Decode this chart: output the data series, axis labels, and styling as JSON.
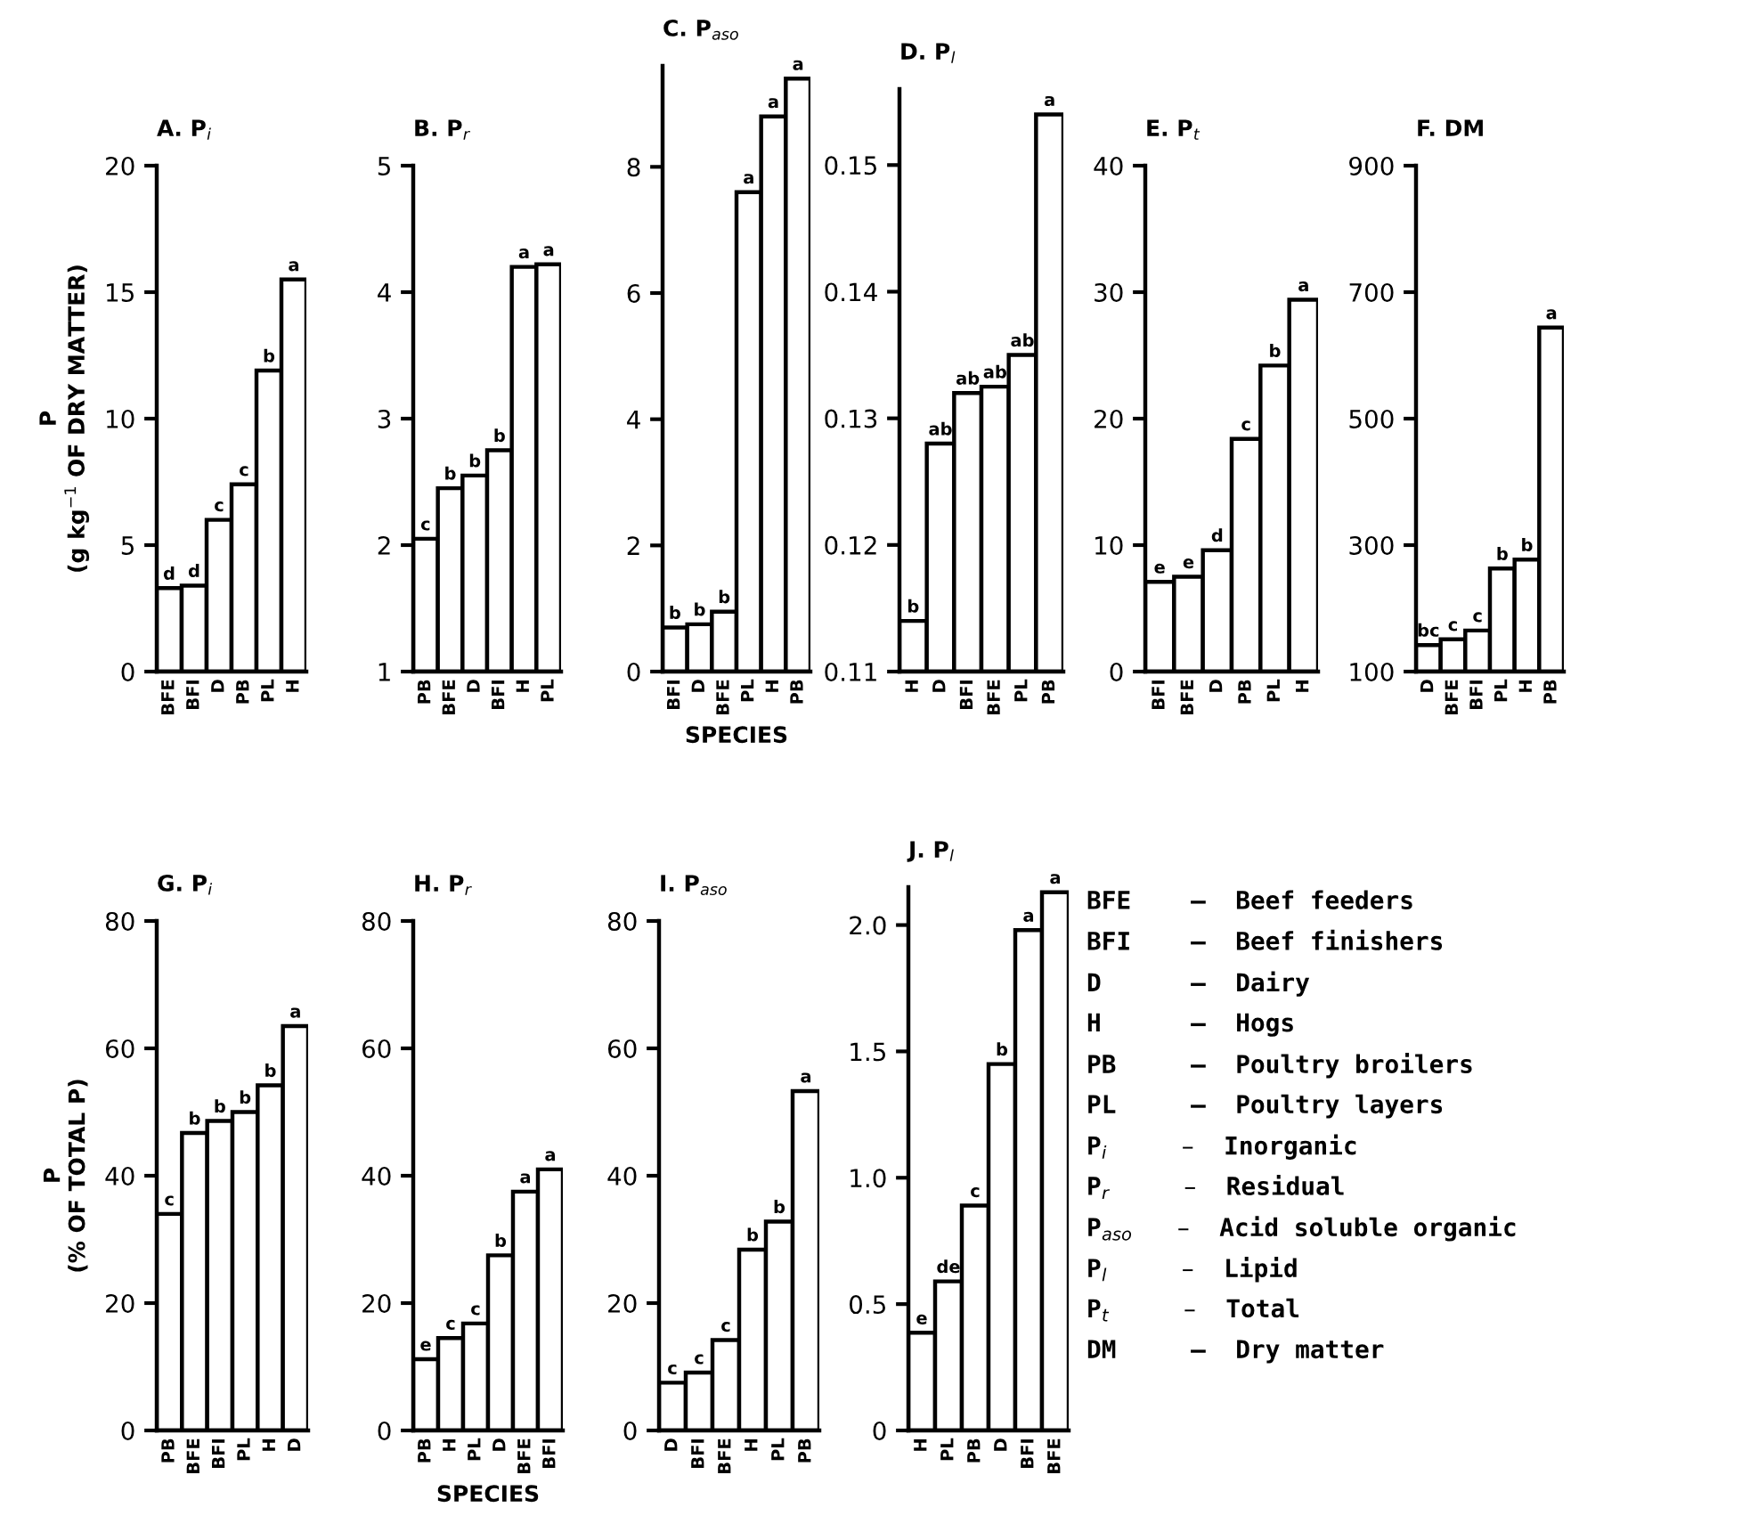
{
  "chart_data": [
    {
      "type": "bar",
      "title": "A. P$_{i}$",
      "ylabel": "P\n(g kg$^{−1}$ OF DRY MATTER)",
      "categories": [
        "BFE",
        "BFI",
        "D",
        "PB",
        "PL",
        "H"
      ],
      "values": [
        3.3,
        3.4,
        6.0,
        7.4,
        11.9,
        15.5
      ],
      "value_labels": [
        "d",
        "d",
        "c",
        "c",
        "b",
        "a"
      ],
      "color": "#ffffff",
      "ylim": [
        0,
        20
      ],
      "yticks": [
        0,
        5,
        10,
        15,
        20
      ]
    },
    {
      "type": "bar",
      "title": "B. P$_{r}$",
      "categories": [
        "PB",
        "BFE",
        "D",
        "BFI",
        "H",
        "PL"
      ],
      "values": [
        2.05,
        2.45,
        2.55,
        2.75,
        4.2,
        4.22
      ],
      "value_labels": [
        "c",
        "b",
        "b",
        "b",
        "a",
        "a"
      ],
      "color": "#ffffff",
      "ylim": [
        1,
        5
      ],
      "yticks": [
        1,
        2,
        3,
        4,
        5
      ]
    },
    {
      "type": "bar",
      "title": "C. P$_{aso}$",
      "xlabel": "SPECIES",
      "categories": [
        "BFI",
        "D",
        "BFE",
        "PL",
        "H",
        "PB"
      ],
      "values": [
        0.7,
        0.75,
        0.95,
        7.6,
        8.8,
        9.4
      ],
      "value_labels": [
        "b",
        "b",
        "b",
        "a",
        "a",
        "a"
      ],
      "color": "#ffffff",
      "ylim": [
        0,
        9.6
      ],
      "yticks": [
        0,
        2,
        4,
        6,
        8
      ]
    },
    {
      "type": "bar",
      "title": "D. P$_{l}$",
      "categories": [
        "H",
        "D",
        "BFI",
        "BFE",
        "PL",
        "PB"
      ],
      "values": [
        0.114,
        0.128,
        0.132,
        0.1325,
        0.135,
        0.154
      ],
      "value_labels": [
        "b",
        "ab",
        "ab",
        "ab",
        "ab",
        "a"
      ],
      "color": "#ffffff",
      "ylim": [
        0.11,
        0.156
      ],
      "yticks": [
        {
          "value": 0.11,
          "label": "0.11"
        },
        {
          "value": 0.12,
          "label": "0.12"
        },
        {
          "value": 0.13,
          "label": "0.13"
        },
        {
          "value": 0.14,
          "label": "0.14"
        },
        {
          "value": 0.15,
          "label": "0.15"
        }
      ]
    },
    {
      "type": "bar",
      "title": "E. P$_{t}$",
      "categories": [
        "BFI",
        "BFE",
        "D",
        "PB",
        "PL",
        "H"
      ],
      "values": [
        7.1,
        7.5,
        9.6,
        18.4,
        24.2,
        29.4
      ],
      "value_labels": [
        "e",
        "e",
        "d",
        "c",
        "b",
        "a"
      ],
      "color": "#ffffff",
      "ylim": [
        0,
        40
      ],
      "yticks": [
        0,
        10,
        20,
        30,
        40
      ]
    },
    {
      "type": "bar",
      "title": "F. DM",
      "categories": [
        "D",
        "BFE",
        "BFI",
        "PL",
        "H",
        "PB"
      ],
      "values": [
        142,
        151,
        165,
        263,
        277,
        644
      ],
      "value_labels": [
        "bc",
        "c",
        "c",
        "b",
        "b",
        "a"
      ],
      "color": "#ffffff",
      "ylim": [
        100,
        900
      ],
      "yticks": [
        100,
        300,
        500,
        700,
        900
      ]
    },
    {
      "type": "bar",
      "title": "G. P$_{i}$",
      "ylabel": "P\n(% OF TOTAL P)",
      "categories": [
        "PB",
        "BFE",
        "BFI",
        "PL",
        "H",
        "D"
      ],
      "values": [
        34,
        46.7,
        48.6,
        50,
        54.2,
        63.5
      ],
      "value_labels": [
        "c",
        "b",
        "b",
        "b",
        "b",
        "a"
      ],
      "color": "#ffffff",
      "ylim": [
        0,
        80
      ],
      "yticks": [
        0,
        20,
        40,
        60,
        80
      ]
    },
    {
      "type": "bar",
      "title": "H. P$_{r}$",
      "xlabel": "SPECIES",
      "categories": [
        "PB",
        "H",
        "PL",
        "D",
        "BFE",
        "BFI"
      ],
      "values": [
        11.2,
        14.5,
        16.8,
        27.5,
        37.5,
        41
      ],
      "value_labels": [
        "e",
        "c",
        "c",
        "b",
        "a",
        "a"
      ],
      "color": "#ffffff",
      "ylim": [
        0,
        80
      ],
      "yticks": [
        0,
        20,
        40,
        60,
        80
      ]
    },
    {
      "type": "bar",
      "title": "I. P$_{aso}$",
      "categories": [
        "D",
        "BFI",
        "BFE",
        "H",
        "PL",
        "PB"
      ],
      "values": [
        7.5,
        9.1,
        14.2,
        28.4,
        32.8,
        53.3
      ],
      "value_labels": [
        "c",
        "c",
        "c",
        "b",
        "b",
        "a"
      ],
      "color": "#ffffff",
      "ylim": [
        0,
        80
      ],
      "yticks": [
        0,
        20,
        40,
        60,
        80
      ]
    },
    {
      "type": "bar",
      "title": "J. P$_{l}$",
      "categories": [
        "H",
        "PL",
        "PB",
        "D",
        "BFI",
        "BFE"
      ],
      "values": [
        0.387,
        0.59,
        0.89,
        1.45,
        1.98,
        2.13
      ],
      "value_labels": [
        "e",
        "de",
        "c",
        "b",
        "a",
        "a"
      ],
      "color": "#ffffff",
      "ylim": [
        0,
        2.15
      ],
      "yticks": [
        0,
        0.5,
        {
          "value": 1,
          "label": "1.0"
        },
        1.5,
        {
          "value": 2,
          "label": "2.0"
        }
      ]
    },
    {
      "type": "other",
      "annotations": [
        "BFE    –  Beef feeders",
        "BFI    –  Beef finishers",
        "D      –  Dairy",
        "H      –  Hogs",
        "PB     –  Poultry broilers",
        "PL     –  Poultry layers",
        "P$_{i}$     –  Inorganic",
        "P$_{r}$     –  Residual",
        "P$_{aso}$   –  Acid soluble organic",
        "P$_{l}$     –  Lipid",
        "P$_{t}$     –  Total",
        "DM     –  Dry matter"
      ]
    }
  ]
}
